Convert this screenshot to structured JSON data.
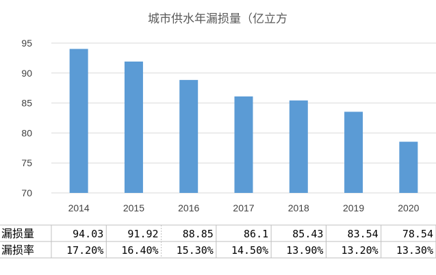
{
  "chart_data": {
    "type": "bar",
    "title": "城市供水年漏损量（亿立方",
    "xlabel": "",
    "ylabel": "",
    "categories": [
      "2014",
      "2015",
      "2016",
      "2017",
      "2018",
      "2019",
      "2020"
    ],
    "series": [
      {
        "values": [
          94.03,
          91.92,
          88.85,
          86.1,
          85.43,
          83.54,
          78.54
        ]
      }
    ],
    "ylim": [
      70,
      95
    ],
    "yticks": [
      70,
      75,
      80,
      85,
      90,
      95
    ],
    "grid": true,
    "bar_color": "#5B9BD5",
    "grid_color": "#D9D9D9",
    "table": {
      "rows": [
        {
          "label": "漏损量",
          "values": [
            "94.03",
            "91.92",
            "88.85",
            "86.1",
            "85.43",
            "83.54",
            "78.54"
          ]
        },
        {
          "label": "漏损率",
          "values": [
            "17.20%",
            "16.40%",
            "15.30%",
            "14.50%",
            "13.90%",
            "13.20%",
            "13.30%"
          ]
        }
      ]
    }
  }
}
